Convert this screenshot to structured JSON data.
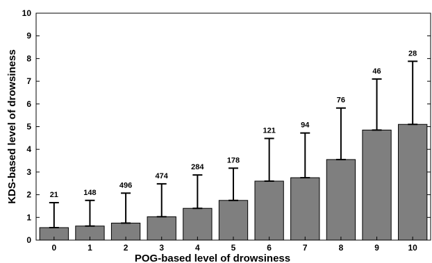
{
  "chart_data": {
    "type": "bar",
    "title": "",
    "xlabel": "POG-based level of drowsiness",
    "ylabel": "KDS-based level of drowsiness",
    "categories": [
      "0",
      "1",
      "2",
      "3",
      "4",
      "5",
      "6",
      "7",
      "8",
      "9",
      "10"
    ],
    "values": [
      0.55,
      0.62,
      0.75,
      1.03,
      1.4,
      1.75,
      2.6,
      2.75,
      3.55,
      4.85,
      5.1
    ],
    "error_upper": [
      1.65,
      1.75,
      2.07,
      2.48,
      2.87,
      3.17,
      4.48,
      4.72,
      5.82,
      7.1,
      7.88
    ],
    "counts": [
      "21",
      "148",
      "496",
      "474",
      "284",
      "178",
      "121",
      "94",
      "76",
      "46",
      "28"
    ],
    "yticks": [
      "0",
      "1",
      "2",
      "3",
      "4",
      "5",
      "6",
      "7",
      "8",
      "9",
      "10"
    ],
    "ylim": [
      0,
      10
    ],
    "xlim": [
      -0.5,
      10.5
    ],
    "grid": false,
    "bar_color": "#7f7f7f"
  }
}
